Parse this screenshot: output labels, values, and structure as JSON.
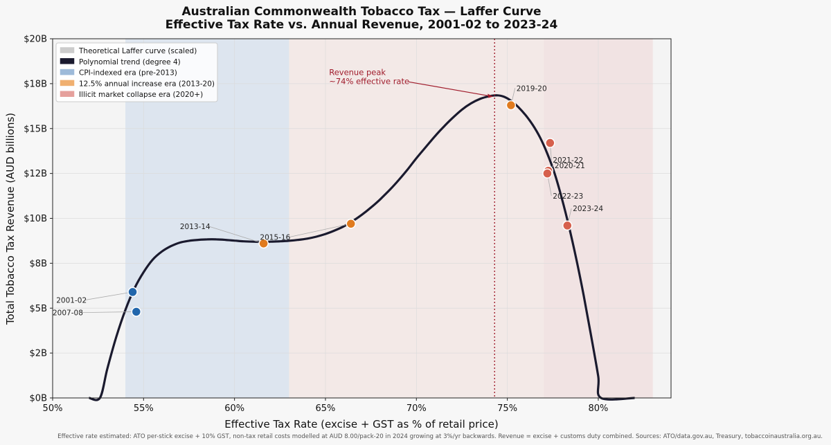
{
  "chart_data": {
    "type": "scatter",
    "title": "Australian Commonwealth Tobacco Tax — Laffer Curve",
    "subtitle": "Effective Tax Rate vs. Annual Revenue, 2001-02 to 2023-24",
    "xlabel": "Effective Tax Rate  (excise + GST as % of retail price)",
    "ylabel": "Total Tobacco Tax Revenue  (AUD billions)",
    "xlim": [
      50,
      84
    ],
    "ylim": [
      0,
      20
    ],
    "x_ticks": [
      50,
      55,
      60,
      65,
      70,
      75,
      80
    ],
    "x_tick_labels": [
      "50%",
      "55%",
      "60%",
      "65%",
      "70%",
      "75%",
      "80%"
    ],
    "y_ticks": [
      0,
      2.5,
      5,
      7.5,
      10,
      12.5,
      15,
      17.5,
      20
    ],
    "y_tick_labels": [
      "$0B",
      "$2B",
      "$5B",
      "$8B",
      "$10B",
      "$12B",
      "$15B",
      "$18B",
      "$20B"
    ],
    "grid": true,
    "legend_position": "top-left",
    "legend": [
      {
        "label": "Theoretical Laffer curve (scaled)",
        "color": "#cccccc"
      },
      {
        "label": "Polynomial trend (degree 4)",
        "color": "#1a1a2e"
      },
      {
        "label": "CPI-indexed era (pre-2013)",
        "color": "#9dbad9"
      },
      {
        "label": "12.5% annual increase era (2013-20)",
        "color": "#f0b070"
      },
      {
        "label": "Illicit market collapse era (2020+)",
        "color": "#e5a09c"
      }
    ],
    "era_bands": [
      {
        "name": "CPI-indexed era (pre-2013)",
        "x_start": 54,
        "x_end": 63,
        "color": "#dde5ef"
      },
      {
        "name": "12.5% annual increase era (2013-20)",
        "x_start": 63,
        "x_end": 77,
        "color": "#f3e9e7"
      },
      {
        "name": "Illicit market collapse era (2020+)",
        "x_start": 77,
        "x_end": 83,
        "color": "#f1e3e3"
      }
    ],
    "trend_points": [
      [
        52,
        0
      ],
      [
        52.6,
        0
      ],
      [
        53.0,
        1.6
      ],
      [
        53.5,
        3.4
      ],
      [
        54.0,
        4.9
      ],
      [
        54.5,
        6.1
      ],
      [
        55.0,
        7.0
      ],
      [
        55.5,
        7.7
      ],
      [
        56.0,
        8.15
      ],
      [
        56.5,
        8.45
      ],
      [
        57.0,
        8.65
      ],
      [
        57.5,
        8.75
      ],
      [
        58.0,
        8.8
      ],
      [
        58.5,
        8.83
      ],
      [
        59.0,
        8.83
      ],
      [
        59.5,
        8.8
      ],
      [
        60.0,
        8.76
      ],
      [
        60.5,
        8.72
      ],
      [
        61.0,
        8.7
      ],
      [
        61.5,
        8.69
      ],
      [
        62.0,
        8.7
      ],
      [
        62.5,
        8.72
      ],
      [
        63.0,
        8.75
      ],
      [
        63.5,
        8.8
      ],
      [
        64.0,
        8.87
      ],
      [
        64.5,
        8.98
      ],
      [
        65.0,
        9.13
      ],
      [
        65.5,
        9.32
      ],
      [
        66.0,
        9.55
      ],
      [
        66.5,
        9.85
      ],
      [
        67.0,
        10.2
      ],
      [
        67.5,
        10.6
      ],
      [
        68.0,
        11.05
      ],
      [
        68.5,
        11.55
      ],
      [
        69.0,
        12.1
      ],
      [
        69.5,
        12.7
      ],
      [
        70.0,
        13.35
      ],
      [
        70.5,
        13.95
      ],
      [
        71.0,
        14.55
      ],
      [
        71.5,
        15.1
      ],
      [
        72.0,
        15.6
      ],
      [
        72.5,
        16.05
      ],
      [
        73.0,
        16.4
      ],
      [
        73.5,
        16.65
      ],
      [
        74.0,
        16.8
      ],
      [
        74.4,
        16.85
      ],
      [
        74.8,
        16.78
      ],
      [
        75.2,
        16.55
      ],
      [
        75.6,
        16.2
      ],
      [
        76.0,
        15.75
      ],
      [
        76.4,
        15.2
      ],
      [
        76.8,
        14.5
      ],
      [
        77.2,
        13.6
      ],
      [
        77.6,
        12.5
      ],
      [
        78.0,
        11.1
      ],
      [
        78.4,
        9.5
      ],
      [
        78.8,
        7.7
      ],
      [
        79.2,
        5.7
      ],
      [
        79.6,
        3.5
      ],
      [
        80.0,
        1.2
      ],
      [
        80.15,
        0
      ],
      [
        82,
        0
      ]
    ],
    "points": [
      {
        "year": "2001-02",
        "x": 54.4,
        "y": 5.9,
        "era": "CPI",
        "color": "#2166ac"
      },
      {
        "year": "2007-08",
        "x": 54.6,
        "y": 4.8,
        "era": "CPI",
        "color": "#2166ac"
      },
      {
        "year": "2013-14",
        "x": 61.6,
        "y": 8.6,
        "era": "12.5",
        "color": "#e07b1f"
      },
      {
        "year": "2015-16",
        "x": 66.4,
        "y": 9.7,
        "era": "12.5",
        "color": "#e07b1f"
      },
      {
        "year": "2019-20",
        "x": 75.2,
        "y": 16.3,
        "era": "12.5",
        "color": "#e07b1f"
      },
      {
        "year": "2021-22",
        "x": 77.35,
        "y": 14.2,
        "era": "illicit",
        "color": "#d6604d"
      },
      {
        "year": "2020-21",
        "x": 77.25,
        "y": 12.65,
        "era": "illicit",
        "color": "#d6604d"
      },
      {
        "year": "2022-23",
        "x": 77.2,
        "y": 12.5,
        "era": "illicit",
        "color": "#d6604d"
      },
      {
        "year": "2023-24",
        "x": 78.3,
        "y": 9.6,
        "era": "illicit",
        "color": "#d6604d"
      }
    ],
    "point_labels": [
      {
        "year": "2001-02",
        "label_x": 50.2,
        "label_y": 5.3,
        "anchor": "start"
      },
      {
        "year": "2007-08",
        "label_x": 50.0,
        "label_y": 4.6,
        "anchor": "start"
      },
      {
        "year": "2013-14",
        "label_x": 57.0,
        "label_y": 9.4,
        "anchor": "start"
      },
      {
        "year": "2015-16",
        "label_x": 61.4,
        "label_y": 8.8,
        "anchor": "start"
      },
      {
        "year": "2019-20",
        "label_x": 75.5,
        "label_y": 17.1,
        "anchor": "start"
      },
      {
        "year": "2021-22",
        "label_x": 77.5,
        "label_y": 13.1,
        "anchor": "start"
      },
      {
        "year": "2020-21",
        "label_x": 77.6,
        "label_y": 12.8,
        "anchor": "start"
      },
      {
        "year": "2022-23",
        "label_x": 77.5,
        "label_y": 11.1,
        "anchor": "start"
      },
      {
        "year": "2023-24",
        "label_x": 78.6,
        "label_y": 10.4,
        "anchor": "start"
      }
    ],
    "peak": {
      "x": 74.3,
      "y": 16.9,
      "line_label_1": "Revenue peak",
      "line_label_2": "~74% effective rate",
      "label_x": 65.2,
      "label_y": 17.6,
      "color": "#a01c2c"
    }
  },
  "footnote": "Effective rate estimated: ATO per-stick excise + 10% GST, non-tax retail costs modelled at AUD 8.00/pack-20 in 2024 growing at 3%/yr backwards.  Revenue = excise + customs duty combined.  Sources: ATO/data.gov.au, Treasury, tobaccoinaustralia.org.au."
}
